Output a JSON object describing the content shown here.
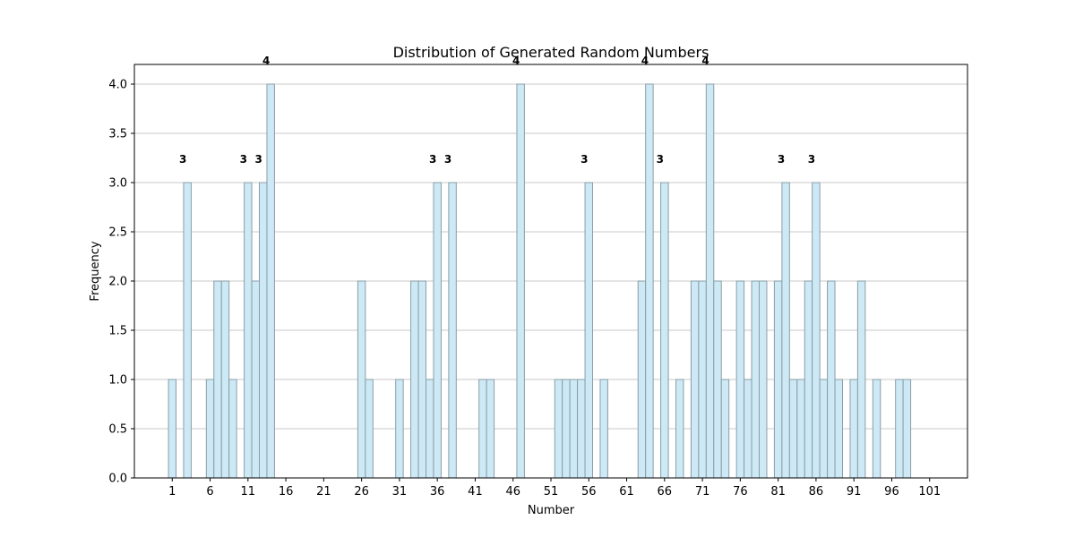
{
  "chart_data": {
    "type": "bar",
    "title": "Distribution of Generated Random Numbers",
    "xlabel": "Number",
    "ylabel": "Frequency",
    "xlim": [
      -4,
      106
    ],
    "ylim": [
      0,
      4.2
    ],
    "x_ticks": [
      "1",
      "6",
      "11",
      "16",
      "21",
      "26",
      "31",
      "36",
      "41",
      "46",
      "51",
      "56",
      "61",
      "66",
      "71",
      "76",
      "81",
      "86",
      "91",
      "96",
      "101"
    ],
    "y_ticks": [
      "0.0",
      "0.5",
      "1.0",
      "1.5",
      "2.0",
      "2.5",
      "3.0",
      "3.5",
      "4.0"
    ],
    "grid": "y",
    "bar_color": "#cde9f6",
    "edge_color": "#8a9ea6",
    "x": [
      1,
      3,
      6,
      7,
      8,
      9,
      11,
      12,
      13,
      14,
      26,
      27,
      31,
      33,
      34,
      35,
      36,
      38,
      42,
      43,
      47,
      52,
      53,
      54,
      55,
      56,
      58,
      63,
      64,
      66,
      68,
      70,
      71,
      72,
      73,
      74,
      76,
      77,
      78,
      79,
      81,
      82,
      83,
      84,
      85,
      86,
      87,
      88,
      89,
      91,
      92,
      94,
      97,
      98
    ],
    "values": [
      1,
      3,
      1,
      2,
      2,
      1,
      3,
      2,
      3,
      4,
      2,
      1,
      1,
      2,
      2,
      1,
      3,
      3,
      1,
      1,
      4,
      1,
      1,
      1,
      1,
      3,
      1,
      2,
      4,
      3,
      1,
      2,
      2,
      4,
      2,
      1,
      2,
      1,
      2,
      2,
      2,
      3,
      1,
      1,
      2,
      3,
      1,
      2,
      1,
      1,
      2,
      1,
      1,
      1
    ],
    "labeled_threshold": 3
  }
}
